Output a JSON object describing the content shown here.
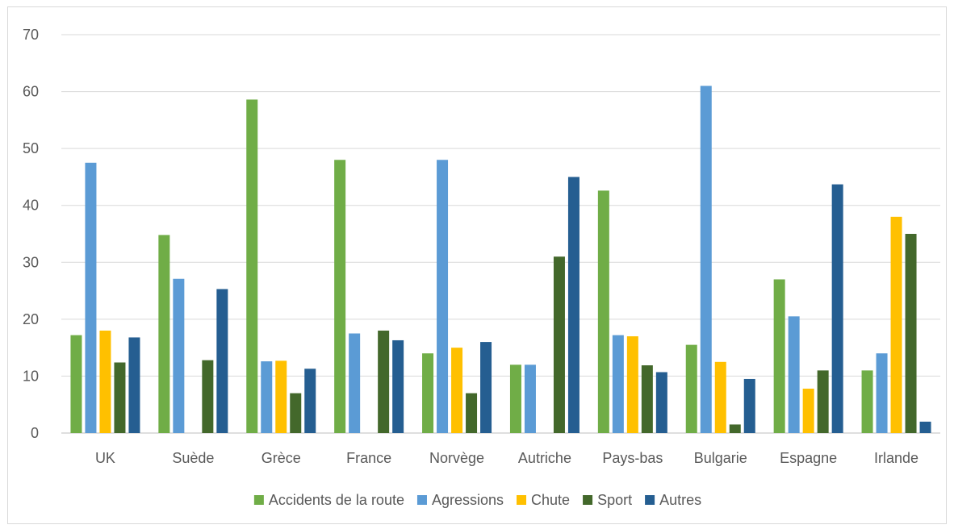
{
  "chart_data": {
    "type": "bar",
    "title": "",
    "xlabel": "",
    "ylabel": "",
    "ylim": [
      0,
      70
    ],
    "yticks": [
      0,
      10,
      20,
      30,
      40,
      50,
      60,
      70
    ],
    "grid": true,
    "legend_position": "bottom",
    "categories": [
      "UK",
      "Suède",
      "Grèce",
      "France",
      "Norvège",
      "Autriche",
      "Pays-bas",
      "Bulgarie",
      "Espagne",
      "Irlande"
    ],
    "series": [
      {
        "name": "Accidents de la route",
        "color": "#70ad47",
        "values": [
          17.2,
          34.8,
          58.6,
          48,
          14,
          12,
          42.6,
          15.5,
          27,
          11
        ]
      },
      {
        "name": "Agressions",
        "color": "#5b9bd5",
        "values": [
          47.5,
          27.1,
          12.6,
          17.5,
          48,
          12,
          17.2,
          61,
          20.5,
          14
        ]
      },
      {
        "name": "Chute",
        "color": "#ffc000",
        "values": [
          18,
          0,
          12.7,
          0,
          15,
          0,
          17,
          12.5,
          7.8,
          38
        ]
      },
      {
        "name": "Sport",
        "color": "#43682b",
        "values": [
          12.4,
          12.8,
          7,
          18,
          7,
          31,
          11.9,
          1.5,
          11,
          35
        ]
      },
      {
        "name": "Autres",
        "color": "#255e91",
        "values": [
          16.8,
          25.3,
          11.3,
          16.3,
          16,
          45,
          10.7,
          9.5,
          43.7,
          2
        ]
      }
    ]
  }
}
